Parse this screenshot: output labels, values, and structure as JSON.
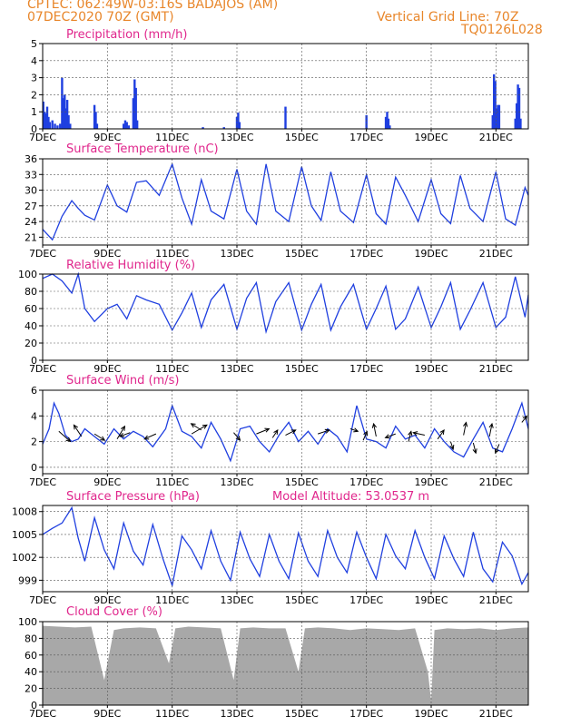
{
  "header": {
    "left_line1": "CPTEC:   062:49W-03:16S   BADAJOS (AM)",
    "left_line2": "07DEC2020 70Z (GMT)",
    "right_line1": "Vertical Grid Line: 70Z",
    "right_line2": "TQ0126L028"
  },
  "colors": {
    "header": "#e8862a",
    "panel_title": "#e0268c",
    "series_line": "#1f3fe0",
    "precip_bar": "#1f3fe0",
    "cloud_fill": "#a8a8a8",
    "wind_arrow": "#000000"
  },
  "x_axis": {
    "tick_labels": [
      "7DEC",
      "9DEC",
      "11DEC",
      "13DEC",
      "15DEC",
      "17DEC",
      "19DEC",
      "21DEC"
    ],
    "tick_days": [
      0,
      2,
      4,
      6,
      8,
      10,
      12,
      14
    ],
    "range_days": [
      0,
      15
    ],
    "grid": "vertical dashed"
  },
  "chart_data": [
    {
      "id": "precip",
      "type": "bar",
      "title": "Precipitation (mm/h)",
      "ylim": [
        0,
        5
      ],
      "yticks": [
        "0",
        "1",
        "2",
        "3",
        "4",
        "5"
      ],
      "bars": [
        [
          0.02,
          1.6
        ],
        [
          0.06,
          1.0
        ],
        [
          0.1,
          0.9
        ],
        [
          0.14,
          1.3
        ],
        [
          0.18,
          0.7
        ],
        [
          0.22,
          0.4
        ],
        [
          0.3,
          0.5
        ],
        [
          0.38,
          0.3
        ],
        [
          0.46,
          0.2
        ],
        [
          0.54,
          0.3
        ],
        [
          0.6,
          3.0
        ],
        [
          0.64,
          1.8
        ],
        [
          0.68,
          2.0
        ],
        [
          0.72,
          1.2
        ],
        [
          0.76,
          1.7
        ],
        [
          0.8,
          0.8
        ],
        [
          0.85,
          0.3
        ],
        [
          1.6,
          1.4
        ],
        [
          1.64,
          1.0
        ],
        [
          1.68,
          0.3
        ],
        [
          2.5,
          0.3
        ],
        [
          2.55,
          0.5
        ],
        [
          2.6,
          0.4
        ],
        [
          2.66,
          0.2
        ],
        [
          2.8,
          1.8
        ],
        [
          2.84,
          2.9
        ],
        [
          2.88,
          2.4
        ],
        [
          2.92,
          0.5
        ],
        [
          4.95,
          0.1
        ],
        [
          5.6,
          0.1
        ],
        [
          6.0,
          0.7
        ],
        [
          6.04,
          0.95
        ],
        [
          6.08,
          0.4
        ],
        [
          7.5,
          1.3
        ],
        [
          10.0,
          0.8
        ],
        [
          10.6,
          0.7
        ],
        [
          10.64,
          1.0
        ],
        [
          10.68,
          0.6
        ],
        [
          10.72,
          0.2
        ],
        [
          13.9,
          0.8
        ],
        [
          13.94,
          3.2
        ],
        [
          13.98,
          2.8
        ],
        [
          14.02,
          1.2
        ],
        [
          14.06,
          1.4
        ],
        [
          14.1,
          1.4
        ],
        [
          14.6,
          0.6
        ],
        [
          14.64,
          1.5
        ],
        [
          14.68,
          2.6
        ],
        [
          14.72,
          2.4
        ],
        [
          14.76,
          0.6
        ]
      ]
    },
    {
      "id": "temp",
      "type": "line",
      "title": "Surface Temperature (nC)",
      "ylim": [
        19.5,
        36
      ],
      "yticks": [
        "21",
        "24",
        "27",
        "30",
        "33",
        "36"
      ],
      "x": [
        0,
        0.3,
        0.6,
        0.9,
        1.1,
        1.3,
        1.6,
        2.0,
        2.3,
        2.6,
        2.9,
        3.2,
        3.6,
        4.0,
        4.3,
        4.6,
        4.9,
        5.2,
        5.6,
        6.0,
        6.3,
        6.6,
        6.9,
        7.2,
        7.6,
        8.0,
        8.3,
        8.6,
        8.9,
        9.2,
        9.6,
        10.0,
        10.3,
        10.6,
        10.9,
        11.2,
        11.6,
        12.0,
        12.3,
        12.6,
        12.9,
        13.2,
        13.6,
        14.0,
        14.3,
        14.6,
        14.9,
        15.0
      ],
      "y": [
        22.5,
        20.5,
        25,
        28,
        26.5,
        25.2,
        24.3,
        31,
        27,
        25.8,
        31.5,
        31.8,
        29,
        35,
        28.5,
        23.5,
        32,
        26,
        24.5,
        34,
        26,
        23.5,
        35,
        26,
        24,
        34.5,
        27,
        24.2,
        33.5,
        26,
        23.8,
        33,
        25.5,
        23.5,
        32.5,
        29,
        24,
        32,
        25.5,
        23.6,
        32.8,
        26.5,
        24,
        33.5,
        24.5,
        23.3,
        30.5,
        29
      ]
    },
    {
      "id": "rh",
      "type": "line",
      "title": "Relative Humidity (%)",
      "ylim": [
        0,
        100
      ],
      "yticks": [
        "0",
        "20",
        "40",
        "60",
        "80",
        "100"
      ],
      "x": [
        0,
        0.3,
        0.6,
        0.9,
        1.1,
        1.3,
        1.6,
        2.0,
        2.3,
        2.6,
        2.9,
        3.2,
        3.6,
        4.0,
        4.3,
        4.6,
        4.9,
        5.2,
        5.6,
        6.0,
        6.3,
        6.6,
        6.9,
        7.2,
        7.6,
        8.0,
        8.3,
        8.6,
        8.9,
        9.2,
        9.6,
        10.0,
        10.3,
        10.6,
        10.9,
        11.2,
        11.6,
        12.0,
        12.3,
        12.6,
        12.9,
        13.2,
        13.6,
        14.0,
        14.3,
        14.6,
        14.9,
        15.0
      ],
      "y": [
        95,
        100,
        92,
        78,
        100,
        60,
        45,
        60,
        65,
        48,
        75,
        70,
        65,
        35,
        55,
        78,
        38,
        70,
        88,
        36,
        72,
        90,
        33,
        68,
        90,
        35,
        65,
        88,
        35,
        62,
        88,
        36,
        60,
        86,
        36,
        48,
        85,
        38,
        62,
        90,
        36,
        58,
        90,
        38,
        50,
        97,
        50,
        76
      ]
    },
    {
      "id": "wind",
      "type": "line",
      "title": "Surface Wind (m/s)",
      "ylim": [
        -0.5,
        6
      ],
      "yticks": [
        "0",
        "2",
        "4",
        "6"
      ],
      "x": [
        0,
        0.2,
        0.35,
        0.5,
        0.7,
        0.9,
        1.1,
        1.3,
        1.6,
        1.9,
        2.2,
        2.5,
        2.8,
        3.1,
        3.4,
        3.8,
        4.0,
        4.3,
        4.6,
        4.9,
        5.2,
        5.5,
        5.8,
        6.1,
        6.4,
        6.7,
        7.0,
        7.3,
        7.6,
        7.9,
        8.2,
        8.5,
        8.8,
        9.1,
        9.4,
        9.7,
        10.0,
        10.3,
        10.6,
        10.9,
        11.2,
        11.5,
        11.8,
        12.1,
        12.4,
        12.7,
        13.0,
        13.3,
        13.6,
        13.9,
        14.2,
        14.5,
        14.8,
        15.0
      ],
      "y": [
        1.8,
        3.0,
        5.0,
        4.2,
        2.5,
        2.0,
        2.2,
        3.0,
        2.4,
        1.8,
        3.0,
        2.2,
        2.8,
        2.4,
        1.6,
        3.0,
        4.8,
        2.8,
        2.4,
        1.5,
        3.5,
        2.2,
        0.5,
        3.0,
        3.2,
        2.0,
        1.2,
        2.5,
        3.5,
        2.0,
        2.8,
        1.8,
        3.0,
        2.4,
        1.2,
        4.8,
        2.2,
        2.0,
        1.5,
        3.2,
        2.2,
        2.5,
        1.5,
        3.0,
        2.0,
        1.2,
        0.8,
        2.2,
        3.5,
        1.5,
        1.2,
        3.0,
        5.0,
        3.0
      ],
      "arrows": [
        [
          0.5,
          2.8,
          0.9,
          -0.8
        ],
        [
          1.2,
          2.4,
          -0.6,
          0.9
        ],
        [
          1.6,
          2.6,
          0.8,
          -0.5
        ],
        [
          2.3,
          2.2,
          0.6,
          1.0
        ],
        [
          2.7,
          2.7,
          -0.8,
          -0.3
        ],
        [
          3.5,
          2.6,
          -0.9,
          -0.4
        ],
        [
          4.6,
          2.6,
          1.2,
          0.7
        ],
        [
          4.9,
          2.9,
          -0.8,
          0.5
        ],
        [
          5.9,
          2.7,
          0.5,
          -0.6
        ],
        [
          6.6,
          2.6,
          1.0,
          0.4
        ],
        [
          7.1,
          2.3,
          0.4,
          0.6
        ],
        [
          7.5,
          2.5,
          0.8,
          0.4
        ],
        [
          8.5,
          2.6,
          0.9,
          0.3
        ],
        [
          9.5,
          3.0,
          0.6,
          -0.2
        ],
        [
          9.9,
          2.1,
          0.3,
          0.7
        ],
        [
          10.3,
          2.4,
          -0.2,
          1.0
        ],
        [
          10.9,
          2.6,
          -0.8,
          -0.3
        ],
        [
          11.3,
          2.0,
          0.2,
          0.8
        ],
        [
          11.8,
          2.5,
          -0.9,
          0.2
        ],
        [
          12.2,
          2.2,
          0.5,
          0.7
        ],
        [
          12.6,
          2.0,
          0.2,
          -0.6
        ],
        [
          13.0,
          2.5,
          0.2,
          1.0
        ],
        [
          13.3,
          1.9,
          0.2,
          -0.8
        ],
        [
          13.8,
          2.4,
          0.2,
          1.0
        ],
        [
          14.1,
          1.8,
          -0.3,
          -0.7
        ],
        [
          14.8,
          3.5,
          0.4,
          0.5
        ]
      ]
    },
    {
      "id": "pressure",
      "type": "line",
      "title": "Surface Pressure (hPa)",
      "annotation": "Model Altitude: 53.0537 m",
      "ylim": [
        997.5,
        1008.8
      ],
      "yticks": [
        "999",
        "1002",
        "1005",
        "1008"
      ],
      "x": [
        0,
        0.3,
        0.6,
        0.9,
        1.1,
        1.3,
        1.6,
        1.9,
        2.2,
        2.5,
        2.8,
        3.1,
        3.4,
        3.7,
        4.0,
        4.3,
        4.6,
        4.9,
        5.2,
        5.5,
        5.8,
        6.1,
        6.4,
        6.7,
        7.0,
        7.3,
        7.6,
        7.9,
        8.2,
        8.5,
        8.8,
        9.1,
        9.4,
        9.7,
        10.0,
        10.3,
        10.6,
        10.9,
        11.2,
        11.5,
        11.8,
        12.1,
        12.4,
        12.7,
        13.0,
        13.3,
        13.6,
        13.9,
        14.2,
        14.5,
        14.8,
        15.0
      ],
      "y": [
        1005,
        1005.8,
        1006.5,
        1008.5,
        1004.5,
        1001.5,
        1007.2,
        1003,
        1000.5,
        1006.5,
        1002.8,
        1001,
        1006.3,
        1002,
        998.3,
        1004.8,
        1003,
        1000.5,
        1005.5,
        1001.5,
        999,
        1005.3,
        1001.8,
        999.5,
        1005,
        1001.5,
        999.2,
        1005.2,
        1001.5,
        999.5,
        1005.5,
        1002,
        1000,
        1005.3,
        1002,
        999.2,
        1005,
        1002.2,
        1000.5,
        1005.5,
        1002,
        999.2,
        1004.8,
        1001.8,
        999.5,
        1005.3,
        1000.5,
        998.8,
        1004,
        1002.2,
        998.5,
        1000
      ]
    },
    {
      "id": "cloud",
      "type": "area",
      "title": "Cloud Cover (%)",
      "ylim": [
        0,
        100
      ],
      "yticks": [
        "0",
        "20",
        "40",
        "60",
        "80",
        "100"
      ],
      "x": [
        0,
        0.5,
        1.0,
        1.5,
        1.9,
        2.2,
        2.5,
        3.0,
        3.5,
        3.9,
        4.1,
        4.5,
        5.0,
        5.5,
        5.9,
        6.1,
        6.5,
        7.0,
        7.5,
        7.9,
        8.1,
        8.5,
        9.0,
        9.5,
        10.0,
        10.5,
        11.0,
        11.5,
        11.9,
        12.0,
        12.1,
        12.5,
        13.0,
        13.5,
        14.0,
        14.5,
        15.0
      ],
      "y": [
        95,
        94,
        93,
        94,
        30,
        90,
        92,
        93,
        92,
        50,
        92,
        94,
        93,
        92,
        30,
        92,
        93,
        92,
        92,
        40,
        92,
        93,
        92,
        90,
        92,
        91,
        90,
        92,
        40,
        5,
        90,
        92,
        91,
        92,
        90,
        92,
        93
      ]
    }
  ]
}
